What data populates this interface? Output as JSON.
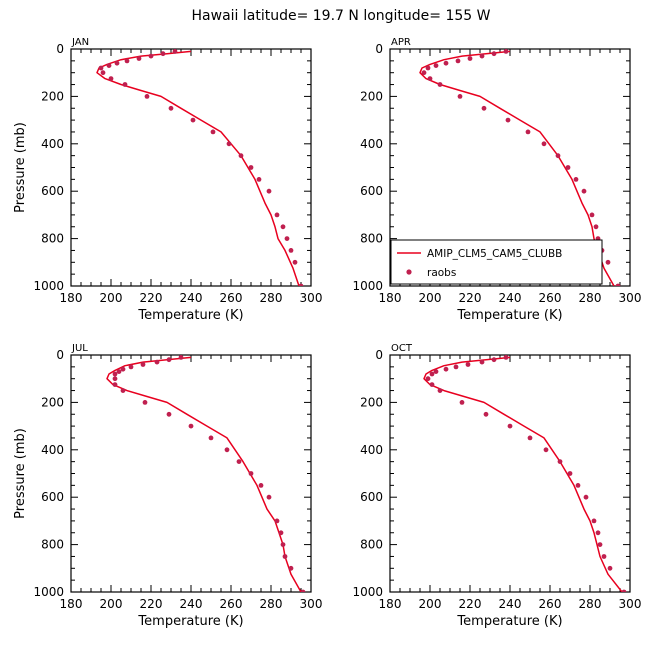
{
  "title": "Hawaii   latitude= 19.7 N longitude= 155 W",
  "colors": {
    "model": "#e8001f",
    "obs": "#c0204f",
    "axis": "#000000"
  },
  "legend": {
    "model_label": "AMIP_CLM5_CAM5_CLUBB",
    "obs_label": "raobs",
    "panel_index": 1
  },
  "chart_data": [
    {
      "type": "line",
      "title": "JAN",
      "xlabel": "Temperature (K)",
      "ylabel": "Pressure (mb)",
      "xlim": [
        180,
        300
      ],
      "ylim": [
        1000,
        0
      ],
      "xticks": [
        "180",
        "200",
        "220",
        "240",
        "260",
        "280",
        "300"
      ],
      "yticks": [
        "0",
        "200",
        "400",
        "600",
        "800",
        "1000"
      ],
      "series": [
        {
          "name": "AMIP_CLM5_CAM5_CLUBB",
          "kind": "line",
          "x": [
            240,
            228,
            215,
            205,
            198,
            194,
            193,
            197,
            205,
            215,
            225,
            235,
            245,
            255,
            265,
            272,
            277,
            280,
            282,
            283.5,
            287,
            291,
            294
          ],
          "y": [
            10,
            20,
            30,
            45,
            65,
            80,
            100,
            125,
            150,
            175,
            200,
            250,
            300,
            350,
            450,
            550,
            650,
            700,
            750,
            800,
            850,
            925,
            1000
          ]
        },
        {
          "name": "raobs",
          "kind": "points",
          "x": [
            232,
            226,
            220,
            214,
            208,
            203,
            199,
            195,
            196,
            200,
            207,
            218,
            230,
            241,
            251,
            259,
            265,
            270,
            274,
            279,
            283,
            286,
            288,
            290,
            292,
            295
          ],
          "y": [
            10,
            20,
            30,
            40,
            50,
            60,
            70,
            80,
            100,
            125,
            150,
            200,
            250,
            300,
            350,
            400,
            450,
            500,
            550,
            600,
            700,
            750,
            800,
            850,
            900,
            1000
          ]
        }
      ]
    },
    {
      "type": "line",
      "title": "APR",
      "xlabel": "Temperature (K)",
      "ylabel": "",
      "xlim": [
        180,
        300
      ],
      "ylim": [
        1000,
        0
      ],
      "xticks": [
        "180",
        "200",
        "220",
        "240",
        "260",
        "280",
        "300"
      ],
      "yticks": [
        "0",
        "200",
        "400",
        "600",
        "800",
        "1000"
      ],
      "series": [
        {
          "name": "AMIP_CLM5_CAM5_CLUBB",
          "kind": "line",
          "x": [
            240,
            228,
            216,
            207,
            200,
            196,
            195,
            198,
            205,
            215,
            225,
            235,
            245,
            255,
            264,
            271,
            276,
            279,
            281,
            282,
            284,
            287,
            292
          ],
          "y": [
            10,
            20,
            30,
            45,
            65,
            80,
            100,
            125,
            150,
            175,
            200,
            250,
            300,
            350,
            450,
            550,
            650,
            700,
            750,
            800,
            850,
            925,
            1000
          ]
        },
        {
          "name": "raobs",
          "kind": "points",
          "x": [
            238,
            232,
            226,
            220,
            214,
            208,
            203,
            199,
            197,
            200,
            205,
            215,
            227,
            239,
            249,
            257,
            264,
            269,
            273,
            277,
            281,
            283,
            284,
            286,
            289,
            294
          ],
          "y": [
            10,
            20,
            30,
            40,
            50,
            60,
            70,
            80,
            100,
            125,
            150,
            200,
            250,
            300,
            350,
            400,
            450,
            500,
            550,
            600,
            700,
            750,
            800,
            850,
            900,
            1000
          ]
        }
      ]
    },
    {
      "type": "line",
      "title": "JUL",
      "xlabel": "Temperature (K)",
      "ylabel": "Pressure (mb)",
      "xlim": [
        180,
        300
      ],
      "ylim": [
        1000,
        0
      ],
      "xticks": [
        "180",
        "200",
        "220",
        "240",
        "260",
        "280",
        "300"
      ],
      "yticks": [
        "0",
        "200",
        "400",
        "600",
        "800",
        "1000"
      ],
      "series": [
        {
          "name": "AMIP_CLM5_CAM5_CLUBB",
          "kind": "line",
          "x": [
            240,
            228,
            216,
            207,
            202,
            199,
            198,
            201,
            208,
            218,
            228,
            238,
            248,
            258,
            266,
            273,
            278,
            282,
            284,
            286,
            287,
            290,
            295
          ],
          "y": [
            10,
            20,
            30,
            45,
            65,
            80,
            100,
            125,
            150,
            175,
            200,
            250,
            300,
            350,
            450,
            550,
            650,
            700,
            750,
            800,
            850,
            925,
            1000
          ]
        },
        {
          "name": "raobs",
          "kind": "points",
          "x": [
            235,
            229,
            223,
            216,
            210,
            206,
            204,
            202,
            202,
            202,
            206,
            217,
            229,
            240,
            250,
            258,
            264,
            270,
            275,
            279,
            283,
            285,
            286,
            287,
            290,
            296
          ],
          "y": [
            10,
            20,
            30,
            40,
            50,
            60,
            70,
            80,
            100,
            125,
            150,
            200,
            250,
            300,
            350,
            400,
            450,
            500,
            550,
            600,
            700,
            750,
            800,
            850,
            900,
            1000
          ]
        }
      ]
    },
    {
      "type": "line",
      "title": "OCT",
      "xlabel": "Temperature (K)",
      "ylabel": "",
      "xlim": [
        180,
        300
      ],
      "ylim": [
        1000,
        0
      ],
      "xticks": [
        "180",
        "200",
        "220",
        "240",
        "260",
        "280",
        "300"
      ],
      "yticks": [
        "0",
        "200",
        "400",
        "600",
        "800",
        "1000"
      ],
      "series": [
        {
          "name": "AMIP_CLM5_CAM5_CLUBB",
          "kind": "line",
          "x": [
            240,
            228,
            216,
            207,
            201,
            198,
            197,
            200,
            207,
            217,
            227,
            237,
            247,
            257,
            265,
            272,
            277,
            280,
            282,
            283.5,
            285,
            289,
            296
          ],
          "y": [
            10,
            20,
            30,
            45,
            65,
            80,
            100,
            125,
            150,
            175,
            200,
            250,
            300,
            350,
            450,
            550,
            650,
            700,
            750,
            800,
            850,
            925,
            1000
          ]
        },
        {
          "name": "raobs",
          "kind": "points",
          "x": [
            238,
            232,
            226,
            219,
            213,
            208,
            203,
            201,
            199,
            201,
            205,
            216,
            228,
            240,
            250,
            258,
            265,
            270,
            274,
            278,
            282,
            284,
            285,
            287,
            290,
            297
          ],
          "y": [
            10,
            20,
            30,
            40,
            50,
            60,
            70,
            80,
            100,
            125,
            150,
            200,
            250,
            300,
            350,
            400,
            450,
            500,
            550,
            600,
            700,
            750,
            800,
            850,
            900,
            1000
          ]
        }
      ]
    }
  ]
}
